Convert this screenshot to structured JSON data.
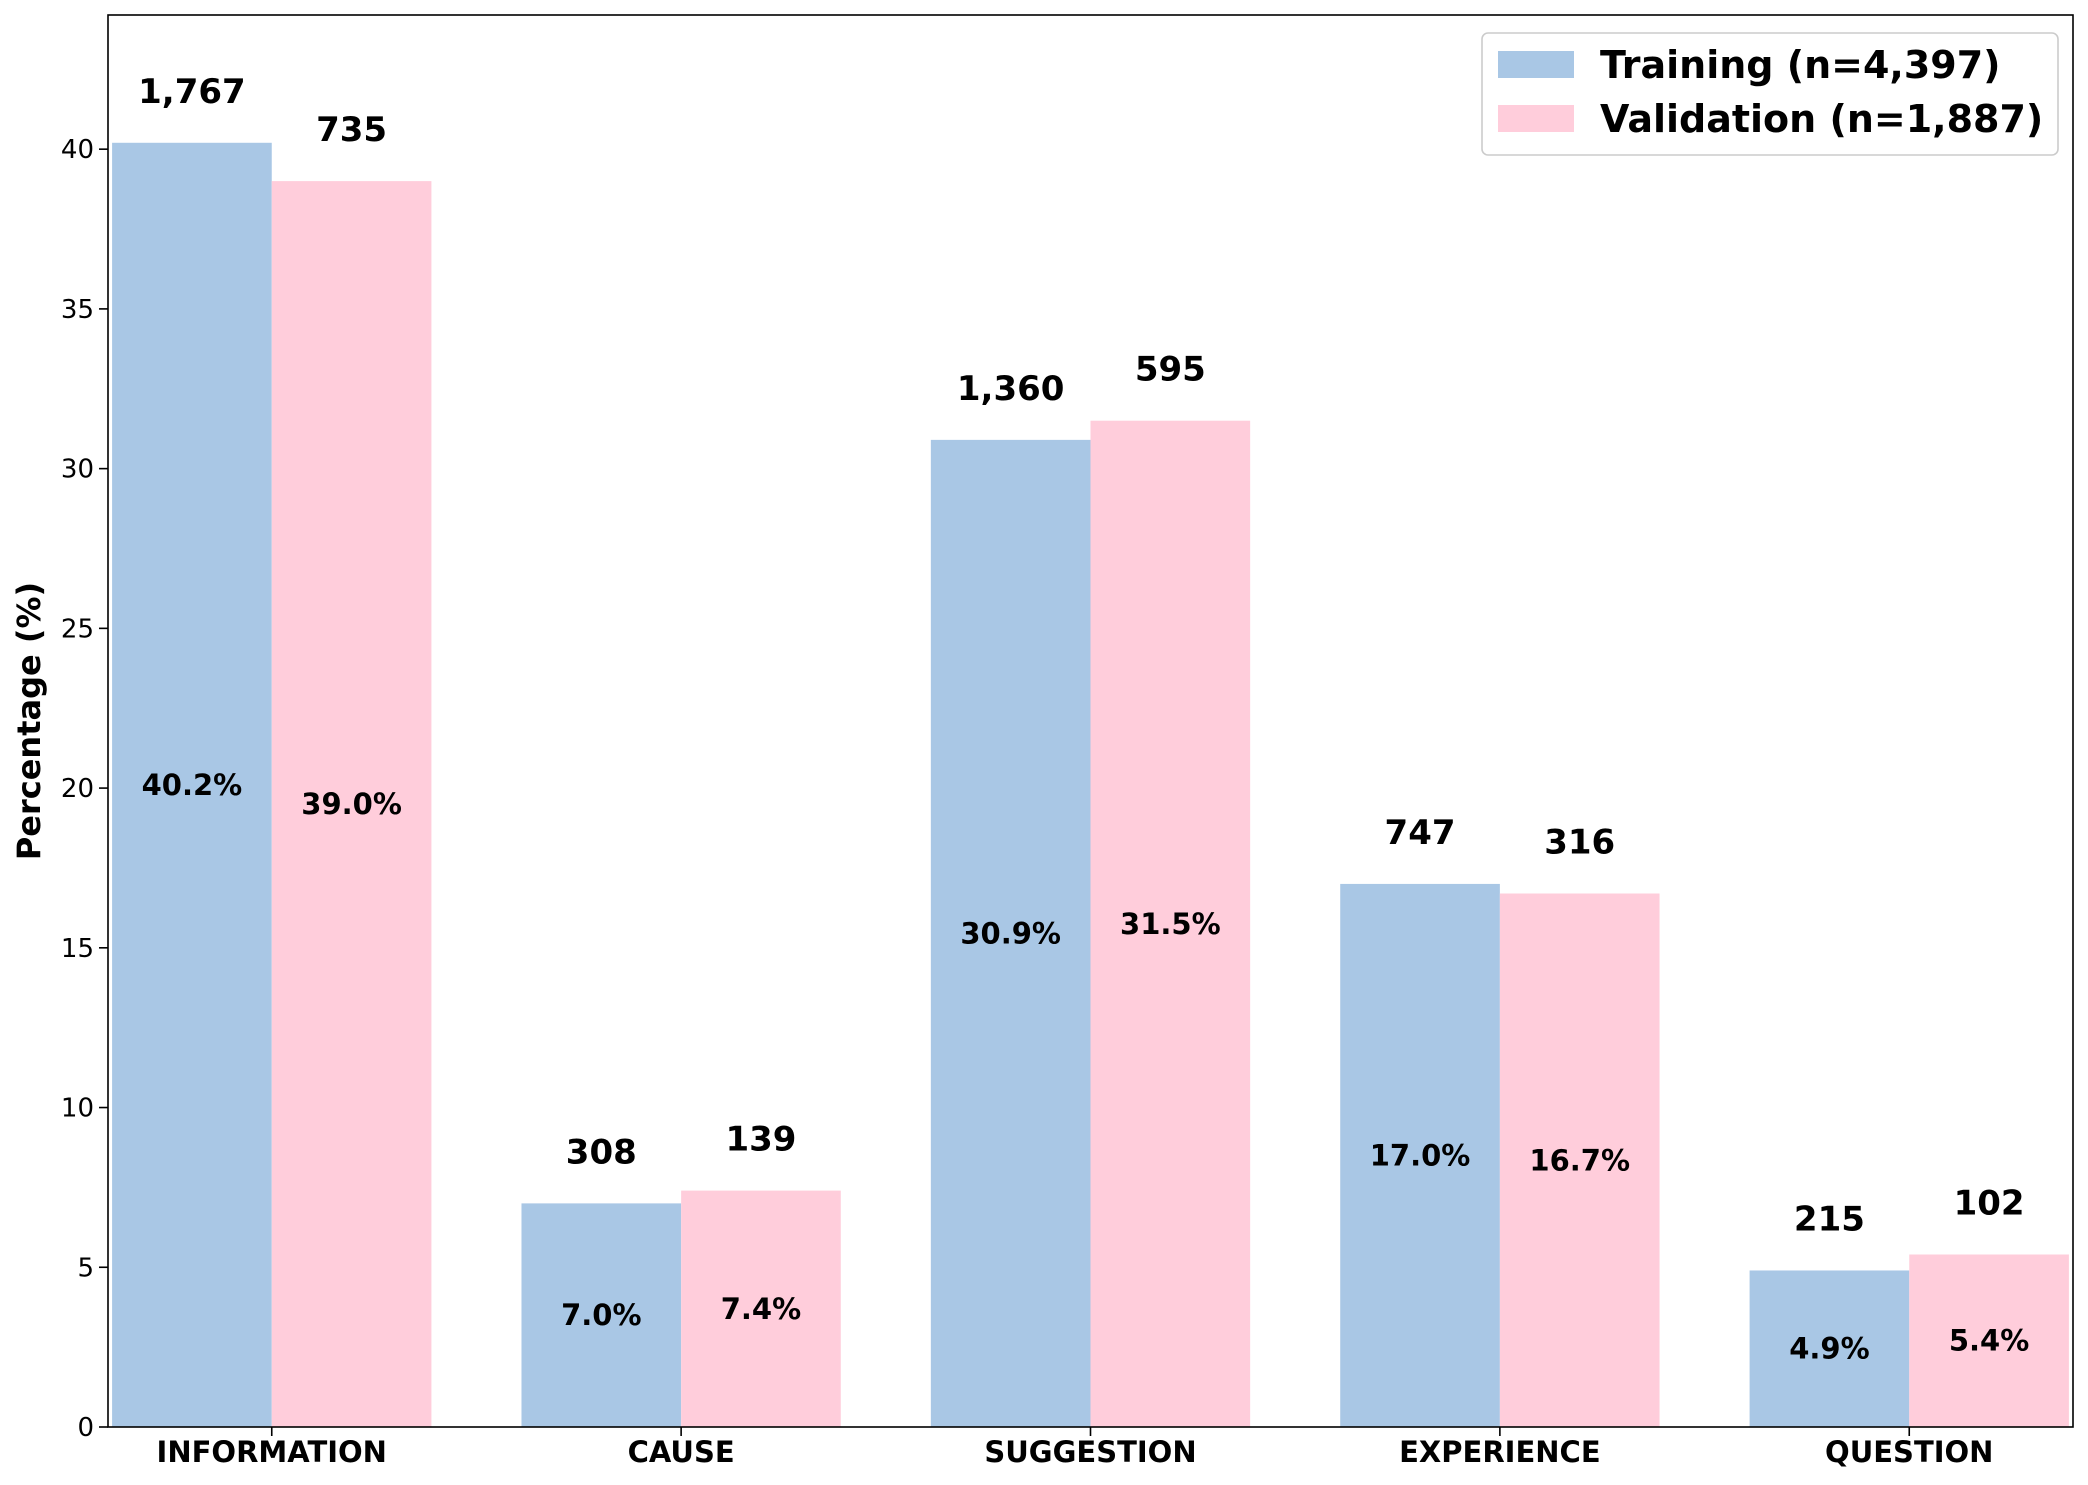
{
  "chart_data": {
    "type": "bar",
    "categories": [
      "INFORMATION",
      "CAUSE",
      "SUGGESTION",
      "EXPERIENCE",
      "QUESTION"
    ],
    "series": [
      {
        "name": "Training (n=4,397)",
        "color": "#a9c7e5",
        "values": [
          40.2,
          7.0,
          30.9,
          17.0,
          4.9
        ],
        "value_labels": [
          "40.2%",
          "7.0%",
          "30.9%",
          "17.0%",
          "4.9%"
        ],
        "count_labels": [
          "1,767",
          "308",
          "1,360",
          "747",
          "215"
        ]
      },
      {
        "name": "Validation (n=1,887)",
        "color": "#ffcddb",
        "values": [
          39.0,
          7.4,
          31.5,
          16.7,
          5.4
        ],
        "value_labels": [
          "39.0%",
          "7.4%",
          "31.5%",
          "16.7%",
          "5.4%"
        ],
        "count_labels": [
          "735",
          "139",
          "595",
          "316",
          "102"
        ]
      }
    ],
    "xlabel": "",
    "ylabel": "Percentage (%)",
    "ylim": [
      0,
      44.2
    ],
    "yticks": [
      "0",
      "5",
      "10",
      "15",
      "20",
      "25",
      "30",
      "35",
      "40"
    ],
    "grid": false,
    "legend_position": "top-right"
  }
}
